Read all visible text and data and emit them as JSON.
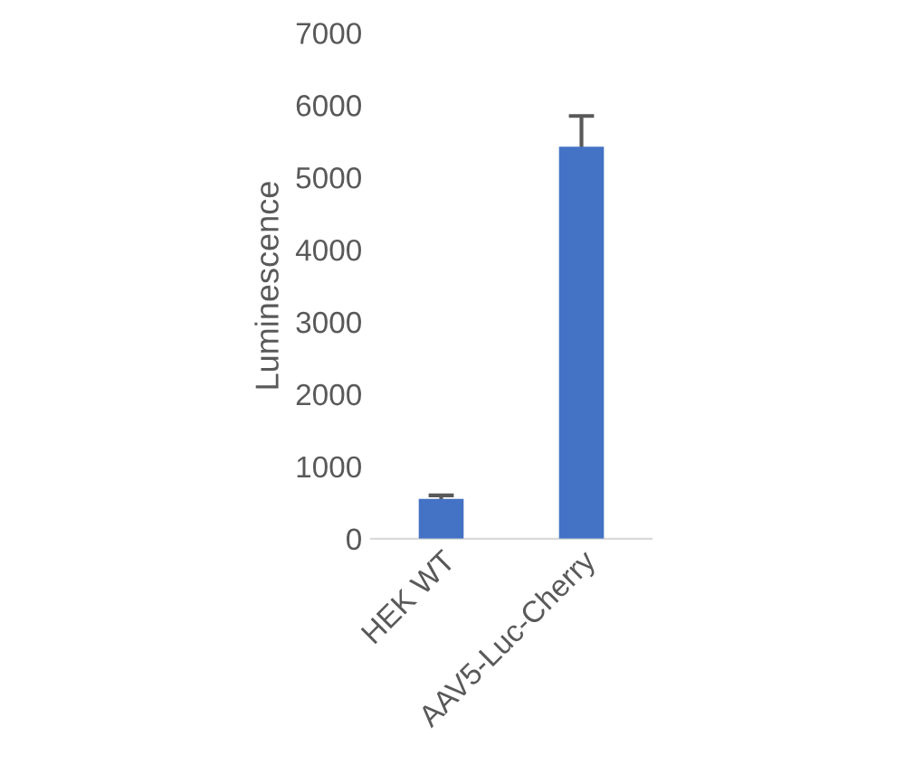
{
  "chart_data": {
    "type": "bar",
    "ylabel": "Luminescence",
    "categories": [
      "HEK WT",
      "AAV5-Luc-Cherry"
    ],
    "values": [
      550,
      5425
    ],
    "errors": [
      50,
      425
    ],
    "color": "#4472c4",
    "ylim": [
      0,
      7000
    ],
    "yticks": [
      0,
      1000,
      2000,
      3000,
      4000,
      5000,
      6000,
      7000
    ],
    "grid": false
  }
}
